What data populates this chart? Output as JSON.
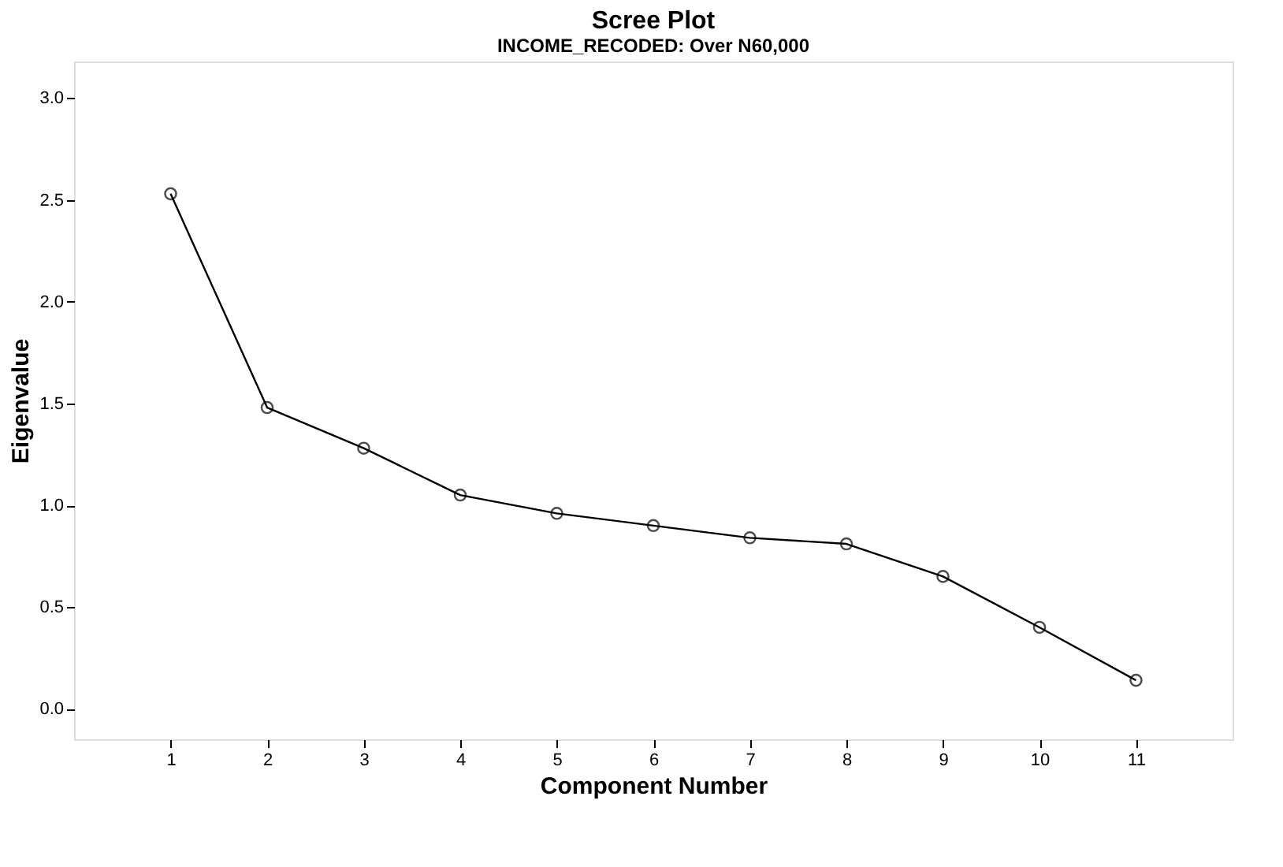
{
  "chart_data": {
    "type": "line",
    "title": "Scree Plot",
    "subtitle": "INCOME_RECODED: Over N60,000",
    "xlabel": "Component Number",
    "ylabel": "Eigenvalue",
    "x": [
      1,
      2,
      3,
      4,
      5,
      6,
      7,
      8,
      9,
      10,
      11
    ],
    "series": [
      {
        "color": "#000000",
        "values": [
          2.53,
          1.48,
          1.28,
          1.05,
          0.96,
          0.9,
          0.84,
          0.81,
          0.65,
          0.4,
          0.14
        ]
      }
    ],
    "xlim": [
      0,
      12
    ],
    "xticks": [
      1,
      2,
      3,
      4,
      5,
      6,
      7,
      8,
      9,
      10,
      11
    ],
    "ylim": [
      -0.15,
      3.18
    ],
    "yticks": [
      {
        "value": 0,
        "label": "0.0"
      },
      0.5,
      {
        "value": 1,
        "label": "1.0"
      },
      1.5,
      {
        "value": 2,
        "label": "2.0"
      },
      2.5,
      {
        "value": 3,
        "label": "3.0"
      }
    ],
    "marker": "circle",
    "line_style": "solid"
  }
}
